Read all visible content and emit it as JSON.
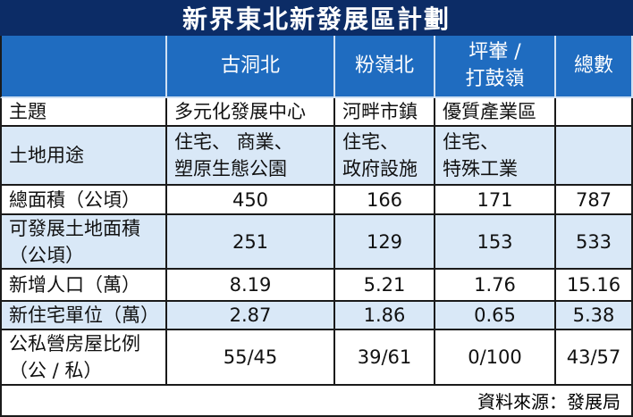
{
  "header": {
    "title": "新界東北新發展區計劃"
  },
  "table": {
    "columns": [
      "古洞北",
      "粉嶺北",
      "坪輋 /\n打鼓嶺",
      "總數"
    ],
    "rows": [
      [
        "主題",
        "多元化發展中心",
        "河畔市鎮",
        "優質產業區"
      ],
      [
        "土地用途",
        "住宅、 商業、\n塑原生態公園",
        "住宅、\n政府設施",
        "住宅、\n特殊工業"
      ],
      [
        "總面積（公頃）",
        450,
        166,
        171,
        787
      ],
      [
        "可發展土地面積\n（公頃）",
        251,
        129,
        153,
        533
      ],
      [
        "新增人口（萬）",
        8.19,
        5.21,
        1.76,
        15.16
      ],
      [
        "新住宅單位（萬）",
        2.87,
        1.86,
        0.65,
        5.38
      ],
      [
        "公私營房屋比例\n（公 / 私）",
        "55/45",
        "39/61",
        "0/100",
        "43/57"
      ]
    ]
  },
  "footer": {
    "source": "資料來源：發展局"
  }
}
